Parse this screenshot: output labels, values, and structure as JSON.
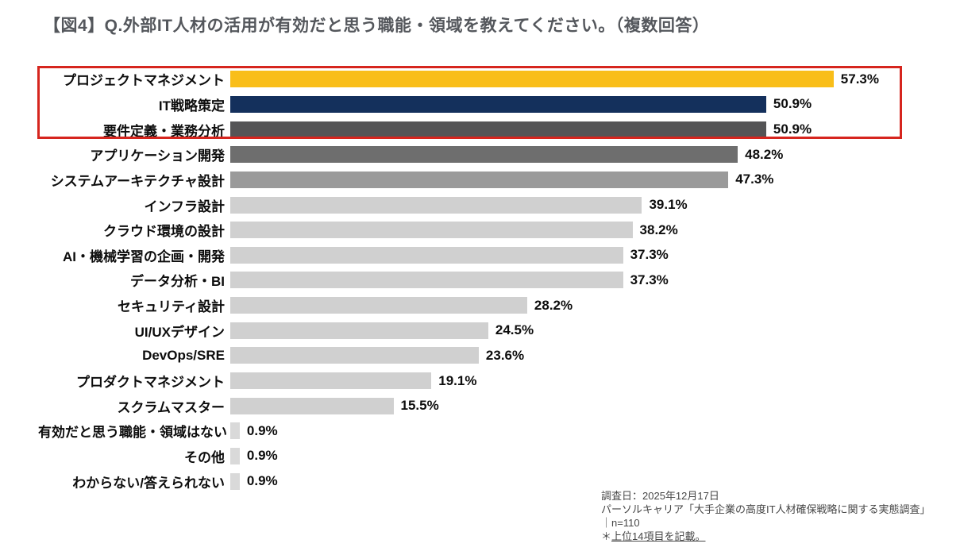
{
  "header": {
    "title": "【図4】Q.外部IT人材の活用が有効だと思う職能・領域を教えてください。（複数回答）",
    "title_color": "#54575c"
  },
  "chart_data": {
    "type": "bar",
    "orientation": "horizontal",
    "categories": [
      "プロジェクトマネジメント",
      "IT戦略策定",
      "要件定義・業務分析",
      "アプリケーション開発",
      "システムアーキテクチャ設計",
      "インフラ設計",
      "クラウド環境の設計",
      "AI・機械学習の企画・開発",
      "データ分析・BI",
      "セキュリティ設計",
      "UI/UXデザイン",
      "DevOps/SRE",
      "プロダクトマネジメント",
      "スクラムマスター",
      "有効だと思う職能・領域はない",
      "その他",
      "わからない/答えられない"
    ],
    "values": [
      57.3,
      50.9,
      50.9,
      48.2,
      47.3,
      39.1,
      38.2,
      37.3,
      37.3,
      28.2,
      24.5,
      23.6,
      19.1,
      15.5,
      0.9,
      0.9,
      0.9
    ],
    "value_labels": [
      "57.3%",
      "50.9%",
      "50.9%",
      "48.2%",
      "47.3%",
      "39.1%",
      "38.2%",
      "37.3%",
      "37.3%",
      "28.2%",
      "24.5%",
      "23.6%",
      "19.1%",
      "15.5%",
      "0.9%",
      "0.9%",
      "0.9%"
    ],
    "bar_colors": [
      "#f9be19",
      "#14305c",
      "#545456",
      "#6e6e6e",
      "#9a9a9a",
      "#d0d0d0",
      "#d0d0d0",
      "#d0d0d0",
      "#d0d0d0",
      "#d0d0d0",
      "#d0d0d0",
      "#d0d0d0",
      "#d0d0d0",
      "#d0d0d0",
      "#d9d9d9",
      "#d9d9d9",
      "#d9d9d9"
    ],
    "xlim": [
      0,
      60
    ],
    "grid": false,
    "data_labels": "outside-end",
    "legend": "none",
    "highlight": {
      "rows": [
        0,
        1,
        2
      ],
      "border_color": "#d6251e"
    }
  },
  "footnote": {
    "lines": [
      "調査日：2025年12月17日",
      "パーソルキャリア「大手企業の高度IT人材確保戦略に関する実態調査」",
      "｜n=110"
    ],
    "note_marker": "＊",
    "note_text": "上位14項目を記載。",
    "color": "#474747"
  }
}
